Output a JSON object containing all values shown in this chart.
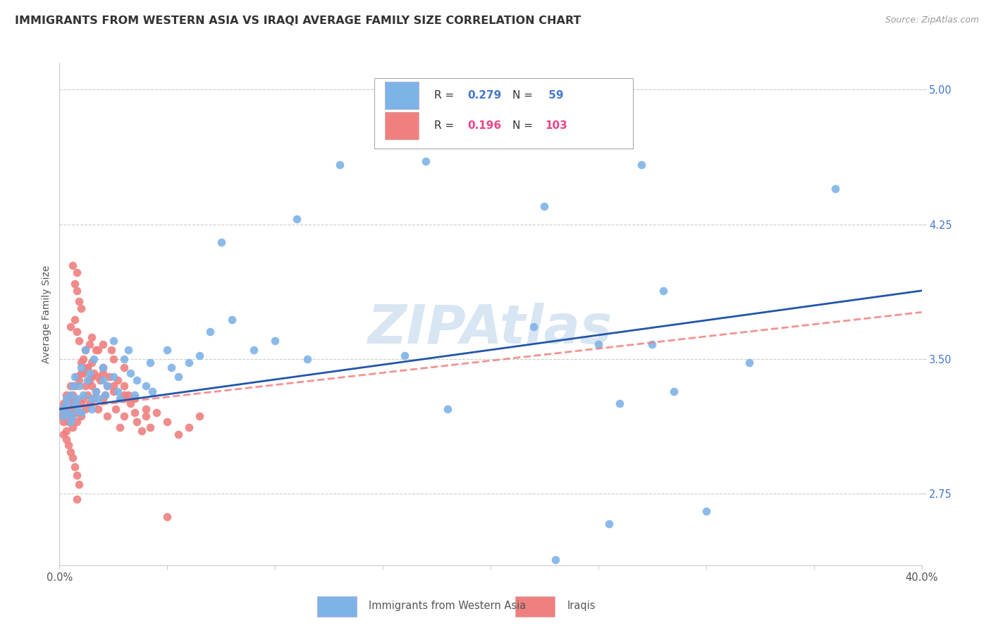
{
  "title": "IMMIGRANTS FROM WESTERN ASIA VS IRAQI AVERAGE FAMILY SIZE CORRELATION CHART",
  "source": "Source: ZipAtlas.com",
  "ylabel": "Average Family Size",
  "yticks": [
    2.75,
    3.5,
    4.25,
    5.0
  ],
  "xlim": [
    0.0,
    0.4
  ],
  "ylim": [
    2.35,
    5.15
  ],
  "color_blue": "#7EB3E8",
  "color_pink": "#F08080",
  "color_blue_text": "#4477CC",
  "color_pink_text": "#EE4488",
  "watermark": "ZIPAtlas",
  "legend_label1": "Immigrants from Western Asia",
  "legend_label2": "Iraqis",
  "blue_scatter": [
    [
      0.001,
      3.22
    ],
    [
      0.002,
      3.18
    ],
    [
      0.003,
      3.25
    ],
    [
      0.003,
      3.28
    ],
    [
      0.004,
      3.2
    ],
    [
      0.005,
      3.15
    ],
    [
      0.005,
      3.3
    ],
    [
      0.006,
      3.35
    ],
    [
      0.006,
      3.18
    ],
    [
      0.007,
      3.4
    ],
    [
      0.007,
      3.25
    ],
    [
      0.008,
      3.22
    ],
    [
      0.008,
      3.28
    ],
    [
      0.009,
      3.35
    ],
    [
      0.01,
      3.45
    ],
    [
      0.01,
      3.2
    ],
    [
      0.011,
      3.3
    ],
    [
      0.012,
      3.55
    ],
    [
      0.013,
      3.38
    ],
    [
      0.014,
      3.42
    ],
    [
      0.015,
      3.28
    ],
    [
      0.015,
      3.22
    ],
    [
      0.016,
      3.5
    ],
    [
      0.017,
      3.32
    ],
    [
      0.018,
      3.28
    ],
    [
      0.02,
      3.45
    ],
    [
      0.02,
      3.38
    ],
    [
      0.021,
      3.3
    ],
    [
      0.022,
      3.35
    ],
    [
      0.025,
      3.4
    ],
    [
      0.025,
      3.6
    ],
    [
      0.027,
      3.32
    ],
    [
      0.028,
      3.28
    ],
    [
      0.03,
      3.5
    ],
    [
      0.032,
      3.55
    ],
    [
      0.033,
      3.42
    ],
    [
      0.035,
      3.3
    ],
    [
      0.036,
      3.38
    ],
    [
      0.04,
      3.35
    ],
    [
      0.042,
      3.48
    ],
    [
      0.043,
      3.32
    ],
    [
      0.05,
      3.55
    ],
    [
      0.052,
      3.45
    ],
    [
      0.055,
      3.4
    ],
    [
      0.06,
      3.48
    ],
    [
      0.065,
      3.52
    ],
    [
      0.07,
      3.65
    ],
    [
      0.075,
      4.15
    ],
    [
      0.08,
      3.72
    ],
    [
      0.09,
      3.55
    ],
    [
      0.1,
      3.6
    ],
    [
      0.115,
      3.5
    ],
    [
      0.13,
      4.58
    ],
    [
      0.16,
      3.52
    ],
    [
      0.17,
      4.6
    ],
    [
      0.18,
      3.22
    ],
    [
      0.11,
      4.28
    ],
    [
      0.22,
      3.68
    ],
    [
      0.225,
      4.35
    ],
    [
      0.23,
      2.38
    ],
    [
      0.25,
      3.58
    ],
    [
      0.255,
      2.58
    ],
    [
      0.26,
      3.25
    ],
    [
      0.27,
      4.58
    ],
    [
      0.275,
      3.58
    ],
    [
      0.28,
      3.88
    ],
    [
      0.285,
      3.32
    ],
    [
      0.3,
      2.65
    ],
    [
      0.32,
      3.48
    ],
    [
      0.36,
      4.45
    ]
  ],
  "pink_scatter": [
    [
      0.001,
      3.18
    ],
    [
      0.001,
      3.22
    ],
    [
      0.002,
      3.15
    ],
    [
      0.002,
      3.25
    ],
    [
      0.003,
      3.2
    ],
    [
      0.003,
      3.3
    ],
    [
      0.003,
      3.1
    ],
    [
      0.004,
      3.28
    ],
    [
      0.004,
      3.15
    ],
    [
      0.005,
      3.22
    ],
    [
      0.005,
      3.35
    ],
    [
      0.005,
      3.18
    ],
    [
      0.006,
      3.25
    ],
    [
      0.006,
      3.12
    ],
    [
      0.006,
      3.3
    ],
    [
      0.007,
      3.2
    ],
    [
      0.007,
      3.35
    ],
    [
      0.007,
      3.28
    ],
    [
      0.008,
      3.15
    ],
    [
      0.008,
      3.4
    ],
    [
      0.009,
      3.38
    ],
    [
      0.009,
      3.2
    ],
    [
      0.01,
      3.42
    ],
    [
      0.01,
      3.25
    ],
    [
      0.01,
      3.18
    ],
    [
      0.011,
      3.5
    ],
    [
      0.011,
      3.28
    ],
    [
      0.012,
      3.35
    ],
    [
      0.012,
      3.22
    ],
    [
      0.013,
      3.45
    ],
    [
      0.013,
      3.3
    ],
    [
      0.014,
      3.58
    ],
    [
      0.014,
      3.25
    ],
    [
      0.015,
      3.35
    ],
    [
      0.015,
      3.48
    ],
    [
      0.016,
      3.42
    ],
    [
      0.016,
      3.28
    ],
    [
      0.017,
      3.55
    ],
    [
      0.017,
      3.32
    ],
    [
      0.018,
      3.4
    ],
    [
      0.018,
      3.22
    ],
    [
      0.019,
      3.38
    ],
    [
      0.02,
      3.45
    ],
    [
      0.02,
      3.28
    ],
    [
      0.021,
      3.3
    ],
    [
      0.022,
      3.35
    ],
    [
      0.022,
      3.18
    ],
    [
      0.023,
      3.4
    ],
    [
      0.024,
      3.55
    ],
    [
      0.025,
      3.32
    ],
    [
      0.026,
      3.22
    ],
    [
      0.027,
      3.38
    ],
    [
      0.028,
      3.12
    ],
    [
      0.029,
      3.28
    ],
    [
      0.03,
      3.35
    ],
    [
      0.03,
      3.18
    ],
    [
      0.032,
      3.3
    ],
    [
      0.033,
      3.25
    ],
    [
      0.035,
      3.2
    ],
    [
      0.036,
      3.15
    ],
    [
      0.038,
      3.1
    ],
    [
      0.04,
      3.18
    ],
    [
      0.042,
      3.12
    ],
    [
      0.045,
      3.2
    ],
    [
      0.05,
      3.15
    ],
    [
      0.055,
      3.08
    ],
    [
      0.06,
      3.12
    ],
    [
      0.065,
      3.18
    ],
    [
      0.005,
      3.68
    ],
    [
      0.006,
      4.02
    ],
    [
      0.007,
      3.72
    ],
    [
      0.007,
      3.92
    ],
    [
      0.008,
      3.65
    ],
    [
      0.008,
      3.88
    ],
    [
      0.009,
      3.6
    ],
    [
      0.009,
      3.82
    ],
    [
      0.01,
      3.48
    ],
    [
      0.01,
      3.78
    ],
    [
      0.011,
      3.42
    ],
    [
      0.012,
      3.55
    ],
    [
      0.013,
      3.45
    ],
    [
      0.014,
      3.38
    ],
    [
      0.015,
      3.4
    ],
    [
      0.015,
      3.62
    ],
    [
      0.018,
      3.55
    ],
    [
      0.02,
      3.42
    ],
    [
      0.02,
      3.58
    ],
    [
      0.025,
      3.35
    ],
    [
      0.025,
      3.5
    ],
    [
      0.03,
      3.3
    ],
    [
      0.03,
      3.45
    ],
    [
      0.035,
      3.28
    ],
    [
      0.04,
      3.22
    ],
    [
      0.002,
      3.08
    ],
    [
      0.003,
      3.05
    ],
    [
      0.004,
      3.02
    ],
    [
      0.005,
      2.98
    ],
    [
      0.006,
      2.95
    ],
    [
      0.007,
      2.9
    ],
    [
      0.008,
      2.85
    ],
    [
      0.009,
      2.8
    ],
    [
      0.008,
      2.72
    ],
    [
      0.05,
      2.62
    ],
    [
      0.008,
      3.98
    ]
  ],
  "blue_line_x": [
    0.0,
    0.4
  ],
  "blue_line_y": [
    3.22,
    3.88
  ],
  "pink_line_x": [
    0.0,
    0.4
  ],
  "pink_line_y": [
    3.22,
    3.76
  ],
  "grid_color": "#CCCCCC",
  "background_color": "#FFFFFF",
  "title_fontsize": 11.5,
  "axis_label_fontsize": 10,
  "tick_fontsize": 10.5
}
